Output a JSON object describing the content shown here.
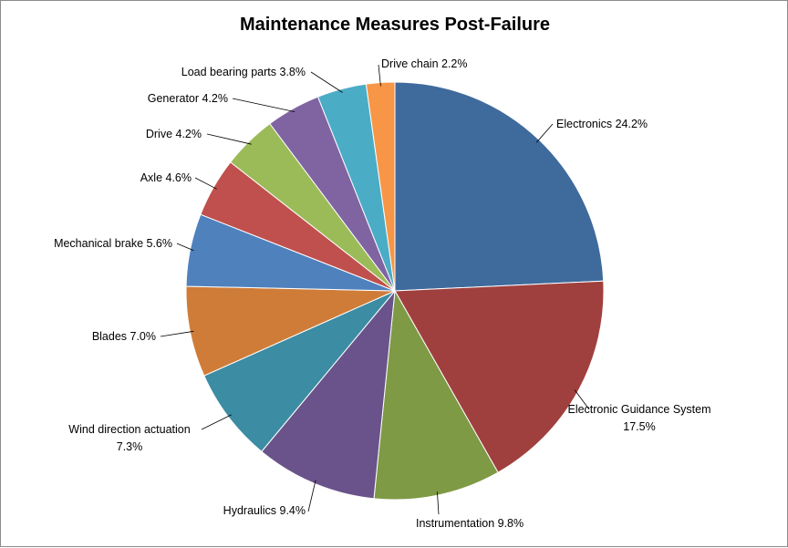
{
  "chart_data": {
    "type": "pie",
    "title": "Maintenance Measures Post-Failure",
    "label_format": "name value%",
    "slices": [
      {
        "name": "Electronics",
        "value": 24.2,
        "display": "24.2%",
        "color": "#3F6A9C"
      },
      {
        "name": "Electronic Guidance System",
        "value": 17.5,
        "display": "17.5%",
        "color": "#A0403E"
      },
      {
        "name": "Instrumentation",
        "value": 9.8,
        "display": "9.8%",
        "color": "#7E9A45"
      },
      {
        "name": "Hydraulics",
        "value": 9.4,
        "display": "9.4%",
        "color": "#69538A"
      },
      {
        "name": "Wind direction actuation",
        "value": 7.3,
        "display": "7.3%",
        "color": "#3C8CA3"
      },
      {
        "name": "Blades",
        "value": 7.0,
        "display": "7.0%",
        "color": "#CF7C39"
      },
      {
        "name": "Mechanical brake",
        "value": 5.6,
        "display": "5.6%",
        "color": "#4F81BD"
      },
      {
        "name": "Axle",
        "value": 4.6,
        "display": "4.6%",
        "color": "#C0504D"
      },
      {
        "name": "Drive",
        "value": 4.2,
        "display": "4.2%",
        "color": "#9BBB59"
      },
      {
        "name": "Generator",
        "value": 4.2,
        "display": "4.2%",
        "color": "#8064A2"
      },
      {
        "name": "Load bearing parts",
        "value": 3.8,
        "display": "3.8%",
        "color": "#4BACC6"
      },
      {
        "name": "Drive chain",
        "value": 2.2,
        "display": "2.2%",
        "color": "#F79646"
      }
    ]
  }
}
